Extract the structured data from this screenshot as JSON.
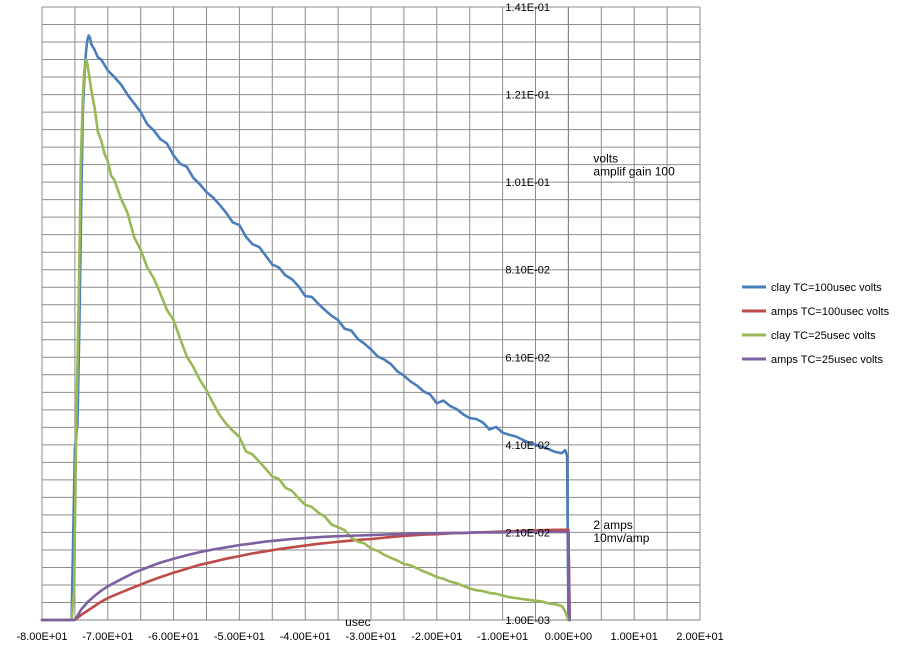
{
  "chart_data": {
    "type": "line",
    "title": "",
    "xlabel": "usec",
    "ylabel": "",
    "xlim": [
      -80,
      20
    ],
    "ylim": [
      0.001,
      0.141
    ],
    "x_ticks": [
      -80,
      -70,
      -60,
      -50,
      -40,
      -30,
      -20,
      -10,
      0,
      10,
      20
    ],
    "x_tick_labels": [
      "-8.00E+01",
      "-7.00E+01",
      "-6.00E+01",
      "-5.00E+01",
      "-4.00E+01",
      "-3.00E+01",
      "-2.00E+01",
      "-1.00E+01",
      "0.00E+00",
      "1.00E+01",
      "2.00E+01"
    ],
    "y_ticks": [
      0.001,
      0.021,
      0.041,
      0.061,
      0.081,
      0.101,
      0.121,
      0.141
    ],
    "y_tick_labels": [
      "1.00E-03",
      "2.10E-02",
      "4.10E-02",
      "6.10E-02",
      "8.10E-02",
      "1.01E-01",
      "1.21E-01",
      "1.41E-01"
    ],
    "y_minor_step": 0.004,
    "x_minor_step": 5,
    "grid": true,
    "legend_position": "right",
    "annotations": [
      {
        "text": "volts",
        "x": 3.8,
        "y": 0.1055
      },
      {
        "text": "amplif gain 100",
        "x": 3.8,
        "y": 0.1025
      },
      {
        "text": "2 amps",
        "x": 3.8,
        "y": 0.0218
      },
      {
        "text": "10mv/amp",
        "x": 3.8,
        "y": 0.0188
      }
    ],
    "series": [
      {
        "name": "clay TC=100usec volts",
        "color": "#4a7ebb",
        "x": [
          -80,
          -75.5,
          -75,
          -74.6,
          -74.3,
          -74,
          -73.8,
          -73.5,
          -73.3,
          -73.1,
          -72.9,
          -72.7,
          -72.5,
          -72,
          -71.5,
          -71,
          -70,
          -69,
          -68,
          -67,
          -66,
          -65,
          -64,
          -63,
          -62,
          -61,
          -60,
          -59,
          -58,
          -57,
          -56,
          -55,
          -54,
          -53,
          -52,
          -51,
          -50,
          -49,
          -48,
          -47,
          -46,
          -45,
          -44,
          -43,
          -42,
          -41,
          -40,
          -39,
          -38,
          -37,
          -36,
          -35,
          -34,
          -33,
          -32,
          -31,
          -30,
          -29,
          -28,
          -27,
          -26,
          -25,
          -24,
          -23,
          -22,
          -21,
          -20,
          -19,
          -18,
          -17,
          -16,
          -15,
          -14,
          -13,
          -12,
          -11,
          -10,
          -9,
          -8,
          -7,
          -6,
          -5,
          -4,
          -3,
          -2,
          -1,
          -0.5,
          -0.2,
          0
        ],
        "y": [
          0.001,
          0.001,
          0.04,
          0.046,
          0.07,
          0.1,
          0.117,
          0.127,
          0.131,
          0.1335,
          0.1345,
          0.134,
          0.1325,
          0.1312,
          0.1295,
          0.129,
          0.1265,
          0.125,
          0.1233,
          0.121,
          0.119,
          0.117,
          0.1142,
          0.1128,
          0.1108,
          0.1098,
          0.1071,
          0.1052,
          0.1045,
          0.102,
          0.1005,
          0.0987,
          0.0975,
          0.0958,
          0.094,
          0.0918,
          0.0912,
          0.0885,
          0.0868,
          0.0862,
          0.0842,
          0.0822,
          0.0815,
          0.0797,
          0.0788,
          0.0772,
          0.075,
          0.0748,
          0.0732,
          0.0718,
          0.0705,
          0.0695,
          0.0675,
          0.0671,
          0.0652,
          0.0641,
          0.0628,
          0.0612,
          0.0605,
          0.0595,
          0.0578,
          0.0568,
          0.0555,
          0.0545,
          0.0532,
          0.0525,
          0.0505,
          0.0511,
          0.0499,
          0.0492,
          0.048,
          0.0471,
          0.0469,
          0.0461,
          0.0445,
          0.0451,
          0.0438,
          0.0433,
          0.0429,
          0.0422,
          0.0415,
          0.0411,
          0.0405,
          0.04,
          0.0394,
          0.0391,
          0.0398,
          0.0385,
          0.001
        ]
      },
      {
        "name": "amps TC=100usec volts",
        "color": "#be4b48",
        "x": [
          -80,
          -75,
          -74,
          -73,
          -72,
          -71,
          -70,
          -68,
          -66,
          -64,
          -62,
          -60,
          -58,
          -56,
          -54,
          -52,
          -50,
          -48,
          -46,
          -44,
          -42,
          -40,
          -38,
          -36,
          -34,
          -32,
          -30,
          -28,
          -26,
          -24,
          -22,
          -20,
          -18,
          -16,
          -14,
          -12,
          -10,
          -8,
          -6,
          -4,
          -2,
          0,
          0.2
        ],
        "y": [
          0.001,
          0.001,
          0.0022,
          0.0032,
          0.0042,
          0.0052,
          0.006,
          0.0073,
          0.0085,
          0.0097,
          0.0108,
          0.0118,
          0.0127,
          0.0136,
          0.0143,
          0.015,
          0.0156,
          0.0162,
          0.0167,
          0.0172,
          0.0176,
          0.018,
          0.0184,
          0.0187,
          0.019,
          0.0193,
          0.0195,
          0.0198,
          0.0201,
          0.0203,
          0.0205,
          0.0206,
          0.0208,
          0.0209,
          0.021,
          0.0211,
          0.0212,
          0.0213,
          0.0214,
          0.0215,
          0.0216,
          0.0216,
          0.001
        ]
      },
      {
        "name": "clay TC=25usec volts",
        "color": "#98b954",
        "x": [
          -80,
          -75.5,
          -75.1,
          -74.8,
          -74.4,
          -74.1,
          -73.8,
          -73.6,
          -73.3,
          -73.1,
          -72.8,
          -72.5,
          -72,
          -71.5,
          -71,
          -70.5,
          -70,
          -69.5,
          -69,
          -68,
          -67,
          -66,
          -65,
          -64,
          -63,
          -62,
          -61,
          -60,
          -59,
          -58,
          -57,
          -56,
          -55,
          -54,
          -53,
          -52,
          -51,
          -50,
          -49,
          -48,
          -47,
          -46,
          -45,
          -44,
          -43,
          -42,
          -41,
          -40,
          -39,
          -38,
          -37,
          -36,
          -35,
          -34,
          -33,
          -32,
          -31,
          -30,
          -29,
          -28,
          -27,
          -26,
          -25,
          -24,
          -23,
          -22,
          -21,
          -20,
          -19,
          -18,
          -17,
          -16,
          -15,
          -14,
          -13,
          -12,
          -11,
          -10,
          -9,
          -8,
          -7,
          -6,
          -5,
          -4,
          -3,
          -2,
          -1,
          -0.5,
          0
        ],
        "y": [
          0.001,
          0.001,
          0.008,
          0.045,
          0.075,
          0.105,
          0.12,
          0.126,
          0.129,
          0.128,
          0.125,
          0.122,
          0.118,
          0.1125,
          0.1105,
          0.1075,
          0.1058,
          0.1025,
          0.1015,
          0.0972,
          0.094,
          0.0885,
          0.0855,
          0.0815,
          0.079,
          0.0755,
          0.0718,
          0.0695,
          0.0652,
          0.0612,
          0.0588,
          0.0558,
          0.0535,
          0.0505,
          0.0478,
          0.0458,
          0.0442,
          0.0428,
          0.0395,
          0.0388,
          0.0372,
          0.0355,
          0.0338,
          0.0332,
          0.0312,
          0.0305,
          0.0288,
          0.0273,
          0.0268,
          0.0255,
          0.0246,
          0.0228,
          0.0222,
          0.0215,
          0.0198,
          0.0189,
          0.0185,
          0.0173,
          0.0168,
          0.0159,
          0.0152,
          0.0146,
          0.0138,
          0.0135,
          0.0128,
          0.0121,
          0.0115,
          0.0108,
          0.0104,
          0.0098,
          0.0094,
          0.0088,
          0.0082,
          0.0078,
          0.0076,
          0.0072,
          0.007,
          0.0066,
          0.0062,
          0.006,
          0.0058,
          0.0056,
          0.0054,
          0.0052,
          0.0048,
          0.0046,
          0.0042,
          0.003,
          0.001
        ]
      },
      {
        "name": "amps TC=25usec volts",
        "color": "#7d60a0",
        "x": [
          -80,
          -75,
          -74,
          -73,
          -72,
          -71,
          -70,
          -68,
          -66,
          -64,
          -62,
          -60,
          -58,
          -56,
          -54,
          -52,
          -50,
          -48,
          -46,
          -44,
          -42,
          -40,
          -38,
          -36,
          -34,
          -32,
          -30,
          -28,
          -26,
          -24,
          -22,
          -20,
          -18,
          -16,
          -14,
          -12,
          -10,
          -8,
          -6,
          -4,
          -2,
          0,
          0.2
        ],
        "y": [
          0.001,
          0.001,
          0.0035,
          0.0052,
          0.0065,
          0.0077,
          0.0087,
          0.0103,
          0.0118,
          0.013,
          0.0141,
          0.015,
          0.0158,
          0.0165,
          0.0171,
          0.0176,
          0.0181,
          0.0185,
          0.0189,
          0.0192,
          0.0195,
          0.0197,
          0.0199,
          0.0201,
          0.0202,
          0.0203,
          0.0204,
          0.0205,
          0.0206,
          0.0207,
          0.0208,
          0.0208,
          0.0209,
          0.0209,
          0.021,
          0.021,
          0.021,
          0.0211,
          0.0211,
          0.0211,
          0.0211,
          0.0211,
          0.001
        ]
      }
    ]
  }
}
